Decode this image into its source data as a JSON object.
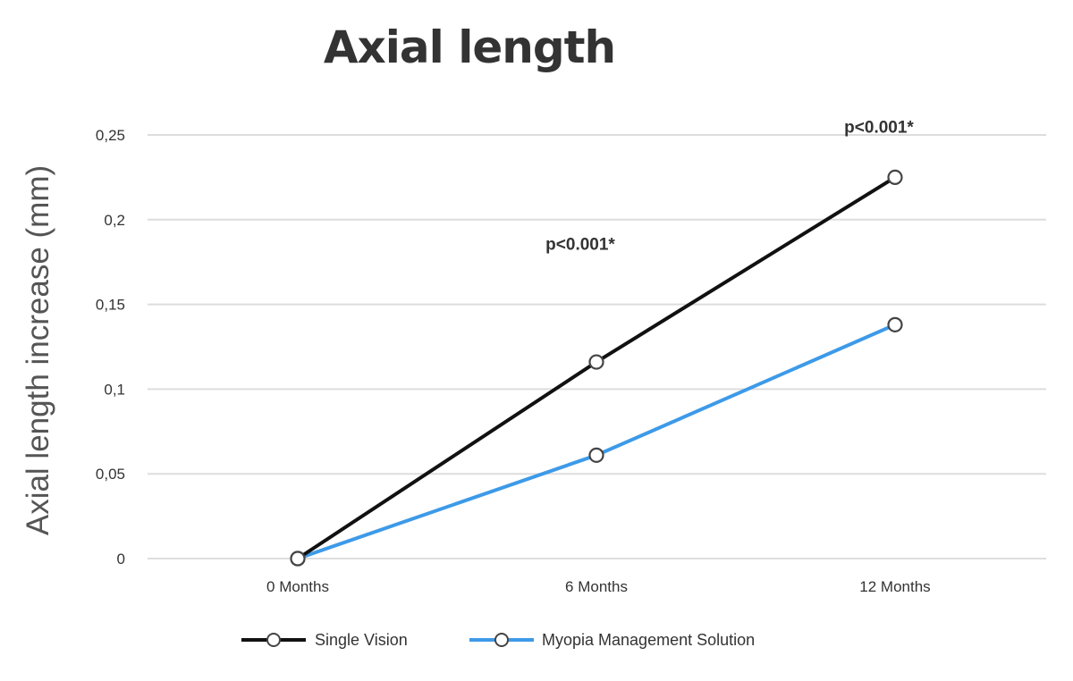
{
  "chart_data": {
    "type": "line",
    "title": "Axial length",
    "ylabel": "Axial length increase (mm)",
    "xlabel": "",
    "categories": [
      "0 Months",
      "6 Months",
      "12 Months"
    ],
    "y_ticks": [
      "0",
      "0,05",
      "0,1",
      "0,15",
      "0,2",
      "0,25"
    ],
    "y_tick_values": [
      0,
      0.05,
      0.1,
      0.15,
      0.2,
      0.25
    ],
    "ylim": [
      0,
      0.25
    ],
    "grid": true,
    "legend_position": "bottom",
    "series": [
      {
        "name": "Single Vision",
        "values": [
          0,
          0.116,
          0.225
        ],
        "color": "#111111"
      },
      {
        "name": "Myopia Management Solution",
        "values": [
          0,
          0.061,
          0.138
        ],
        "color": "#3d9ae8"
      }
    ],
    "annotations": [
      {
        "text": "p<0.001*",
        "category": "6 Months",
        "value": 0.186
      },
      {
        "text": "p<0.001*",
        "category": "12 Months",
        "value": 0.255
      }
    ]
  },
  "colors": {
    "grid": "#dddddd",
    "text": "#333333",
    "marker_fill": "#ffffff",
    "marker_stroke": "#444444"
  }
}
